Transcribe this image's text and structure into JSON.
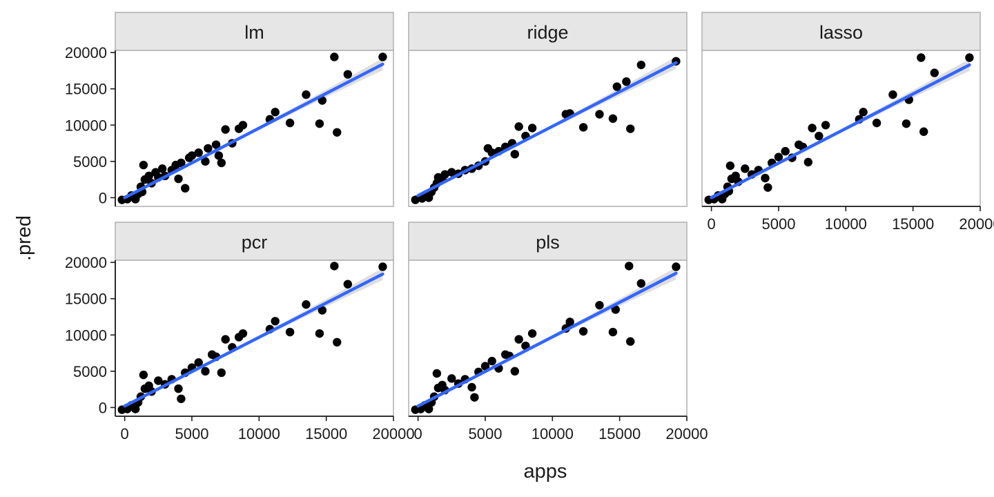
{
  "chart_data": {
    "type": "scatter",
    "facet_layout": "wrap",
    "xlabel": "apps",
    "ylabel": ".pred",
    "xlim": [
      -700,
      20000
    ],
    "ylim": [
      -1200,
      20300
    ],
    "x_ticks": [
      0,
      5000,
      10000,
      15000,
      20000
    ],
    "y_ticks": [
      0,
      5000,
      10000,
      15000,
      20000
    ],
    "x_tick_labels": [
      "0",
      "5000",
      "10000",
      "15000",
      "20000"
    ],
    "y_tick_labels": [
      "0",
      "5000",
      "10000",
      "15000",
      "20000"
    ],
    "grid": false,
    "point_color": "#000000",
    "smooth_line": {
      "method": "lm",
      "color": "#3366ff",
      "band_color": "#c8c8c8"
    },
    "panels": [
      {
        "name": "lm",
        "fit": [
          [
            0,
            0
          ],
          [
            19200,
            18400
          ]
        ],
        "points": [
          [
            -200,
            -300
          ],
          [
            200,
            -200
          ],
          [
            500,
            300
          ],
          [
            800,
            -200
          ],
          [
            1000,
            500
          ],
          [
            1200,
            1500
          ],
          [
            1300,
            800
          ],
          [
            1400,
            4500
          ],
          [
            1500,
            2500
          ],
          [
            1800,
            3000
          ],
          [
            2000,
            2000
          ],
          [
            2300,
            3500
          ],
          [
            2500,
            2800
          ],
          [
            2800,
            4000
          ],
          [
            3000,
            3000
          ],
          [
            3500,
            3800
          ],
          [
            3800,
            4500
          ],
          [
            4000,
            2600
          ],
          [
            4200,
            4800
          ],
          [
            4500,
            1300
          ],
          [
            4800,
            5500
          ],
          [
            5000,
            5800
          ],
          [
            5500,
            6200
          ],
          [
            6000,
            5000
          ],
          [
            6200,
            6800
          ],
          [
            6800,
            7300
          ],
          [
            7000,
            5800
          ],
          [
            7200,
            4800
          ],
          [
            7500,
            9400
          ],
          [
            8000,
            7500
          ],
          [
            8500,
            9500
          ],
          [
            8800,
            10000
          ],
          [
            10800,
            10800
          ],
          [
            11200,
            11800
          ],
          [
            12300,
            10300
          ],
          [
            13500,
            14200
          ],
          [
            14500,
            10200
          ],
          [
            14700,
            13400
          ],
          [
            15600,
            19400
          ],
          [
            15800,
            9000
          ],
          [
            16600,
            17000
          ],
          [
            19200,
            19400
          ]
        ]
      },
      {
        "name": "ridge",
        "fit": [
          [
            0,
            300
          ],
          [
            19200,
            18600
          ]
        ],
        "points": [
          [
            -200,
            -300
          ],
          [
            300,
            -100
          ],
          [
            500,
            300
          ],
          [
            800,
            0
          ],
          [
            1000,
            800
          ],
          [
            1200,
            1400
          ],
          [
            1400,
            2000
          ],
          [
            1500,
            2800
          ],
          [
            1800,
            2500
          ],
          [
            2000,
            3200
          ],
          [
            2500,
            3500
          ],
          [
            3000,
            3300
          ],
          [
            3500,
            3800
          ],
          [
            4000,
            4000
          ],
          [
            4500,
            4400
          ],
          [
            5000,
            5000
          ],
          [
            5200,
            6800
          ],
          [
            5500,
            6200
          ],
          [
            6000,
            6400
          ],
          [
            6500,
            7000
          ],
          [
            7000,
            7500
          ],
          [
            7200,
            6000
          ],
          [
            7500,
            9800
          ],
          [
            8000,
            8500
          ],
          [
            8500,
            9600
          ],
          [
            11000,
            11500
          ],
          [
            11300,
            11600
          ],
          [
            12300,
            9700
          ],
          [
            13500,
            11500
          ],
          [
            14500,
            10900
          ],
          [
            14800,
            15300
          ],
          [
            15500,
            16000
          ],
          [
            15800,
            9500
          ],
          [
            16600,
            18300
          ],
          [
            19200,
            18800
          ]
        ]
      },
      {
        "name": "lasso",
        "fit": [
          [
            0,
            0
          ],
          [
            19200,
            18300
          ]
        ],
        "points": [
          [
            -200,
            -300
          ],
          [
            200,
            -200
          ],
          [
            500,
            300
          ],
          [
            800,
            -200
          ],
          [
            1000,
            500
          ],
          [
            1200,
            1500
          ],
          [
            1300,
            900
          ],
          [
            1400,
            4400
          ],
          [
            1500,
            2600
          ],
          [
            1800,
            3000
          ],
          [
            2000,
            2200
          ],
          [
            2500,
            4000
          ],
          [
            3000,
            3200
          ],
          [
            3500,
            3800
          ],
          [
            4000,
            2700
          ],
          [
            4200,
            1400
          ],
          [
            4500,
            4800
          ],
          [
            5000,
            5600
          ],
          [
            5500,
            6400
          ],
          [
            6000,
            5500
          ],
          [
            6500,
            7300
          ],
          [
            6800,
            7000
          ],
          [
            7200,
            4900
          ],
          [
            7500,
            9600
          ],
          [
            8000,
            8500
          ],
          [
            8500,
            10000
          ],
          [
            11000,
            10800
          ],
          [
            11300,
            11800
          ],
          [
            12300,
            10300
          ],
          [
            13500,
            14200
          ],
          [
            14500,
            10200
          ],
          [
            14700,
            13500
          ],
          [
            15600,
            19300
          ],
          [
            15800,
            9100
          ],
          [
            16600,
            17200
          ],
          [
            19200,
            19300
          ]
        ]
      },
      {
        "name": "pcr",
        "fit": [
          [
            0,
            200
          ],
          [
            19200,
            18400
          ]
        ],
        "points": [
          [
            -200,
            -300
          ],
          [
            200,
            -200
          ],
          [
            500,
            300
          ],
          [
            800,
            -200
          ],
          [
            1000,
            700
          ],
          [
            1200,
            1500
          ],
          [
            1400,
            4500
          ],
          [
            1500,
            2600
          ],
          [
            1800,
            3000
          ],
          [
            2000,
            2200
          ],
          [
            2500,
            3700
          ],
          [
            3000,
            3200
          ],
          [
            3500,
            3900
          ],
          [
            4000,
            2600
          ],
          [
            4200,
            1200
          ],
          [
            4500,
            4800
          ],
          [
            5000,
            5500
          ],
          [
            5500,
            6200
          ],
          [
            6000,
            5000
          ],
          [
            6500,
            7300
          ],
          [
            6800,
            7000
          ],
          [
            7200,
            4800
          ],
          [
            7500,
            9400
          ],
          [
            8000,
            8300
          ],
          [
            8500,
            9700
          ],
          [
            8800,
            10200
          ],
          [
            10800,
            10800
          ],
          [
            11200,
            11900
          ],
          [
            12300,
            10400
          ],
          [
            13500,
            14200
          ],
          [
            14500,
            10200
          ],
          [
            14700,
            13400
          ],
          [
            15600,
            19500
          ],
          [
            15800,
            9000
          ],
          [
            16600,
            17000
          ],
          [
            19200,
            19400
          ]
        ]
      },
      {
        "name": "pls",
        "fit": [
          [
            0,
            200
          ],
          [
            19200,
            18500
          ]
        ],
        "points": [
          [
            -200,
            -300
          ],
          [
            200,
            -200
          ],
          [
            500,
            300
          ],
          [
            800,
            -200
          ],
          [
            1000,
            700
          ],
          [
            1200,
            1500
          ],
          [
            1400,
            4700
          ],
          [
            1500,
            2700
          ],
          [
            1800,
            3100
          ],
          [
            2000,
            2400
          ],
          [
            2500,
            4000
          ],
          [
            3000,
            3300
          ],
          [
            3500,
            3900
          ],
          [
            4000,
            2800
          ],
          [
            4200,
            1400
          ],
          [
            4500,
            4900
          ],
          [
            5000,
            5700
          ],
          [
            5500,
            6400
          ],
          [
            6000,
            5400
          ],
          [
            6500,
            7300
          ],
          [
            6800,
            7100
          ],
          [
            7200,
            5000
          ],
          [
            7500,
            9400
          ],
          [
            8000,
            8500
          ],
          [
            8500,
            10200
          ],
          [
            11000,
            10900
          ],
          [
            11300,
            11800
          ],
          [
            12300,
            10500
          ],
          [
            13500,
            14100
          ],
          [
            14500,
            10400
          ],
          [
            14700,
            13500
          ],
          [
            15700,
            19500
          ],
          [
            15800,
            9100
          ],
          [
            16600,
            17100
          ],
          [
            19200,
            19400
          ]
        ]
      }
    ]
  }
}
